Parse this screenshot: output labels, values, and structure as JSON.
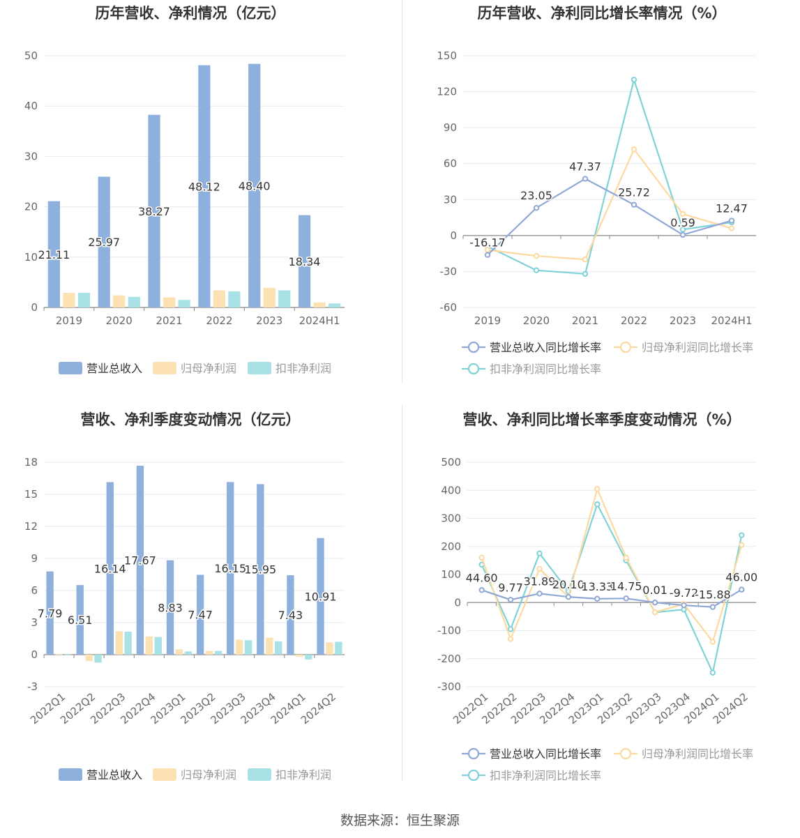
{
  "footer": {
    "source": "数据来源：恒生聚源"
  },
  "colors": {
    "revenue": "#8eb0dc",
    "netProfit": "#fce2b3",
    "deducted": "#a8e2e6",
    "revenueLine": "#8fa8d8",
    "netProfitLine": "#fdd9a0",
    "deductedLine": "#7fd3d6"
  },
  "chart_data": [
    {
      "id": "annual-bar",
      "type": "bar",
      "title": "历年营收、净利情况（亿元）",
      "categories": [
        "2019",
        "2020",
        "2021",
        "2022",
        "2023",
        "2024H1"
      ],
      "ylim": [
        0,
        50
      ],
      "yticks": [
        0,
        10,
        20,
        30,
        40,
        50
      ],
      "series": [
        {
          "name": "营业总收入",
          "values": [
            21.11,
            25.97,
            38.27,
            48.12,
            48.4,
            18.34
          ],
          "labels": [
            "21.11",
            "25.97",
            "38.27",
            "48.12",
            "48.40",
            "18.34"
          ]
        },
        {
          "name": "归母净利润",
          "values": [
            2.9,
            2.4,
            2.0,
            3.4,
            3.9,
            1.0
          ]
        },
        {
          "name": "扣非净利润",
          "values": [
            2.9,
            2.1,
            1.5,
            3.2,
            3.4,
            0.8
          ]
        }
      ]
    },
    {
      "id": "annual-line",
      "type": "line",
      "title": "历年营收、净利同比增长率情况（%）",
      "categories": [
        "2019",
        "2020",
        "2021",
        "2022",
        "2023",
        "2024H1"
      ],
      "ylim": [
        -60,
        150
      ],
      "yticks": [
        -60,
        -30,
        0,
        30,
        60,
        90,
        120,
        150
      ],
      "series": [
        {
          "name": "营业总收入同比增长率",
          "values": [
            -16.17,
            23.05,
            47.37,
            25.72,
            0.59,
            12.47
          ],
          "labels": [
            "-16.17",
            "23.05",
            "47.37",
            "25.72",
            "0.59",
            "12.47"
          ]
        },
        {
          "name": "归母净利润同比增长率",
          "values": [
            -12,
            -17,
            -20,
            72,
            18,
            6
          ]
        },
        {
          "name": "扣非净利润同比增长率",
          "values": [
            -9,
            -29,
            -32,
            130,
            5,
            11
          ]
        }
      ]
    },
    {
      "id": "quarterly-bar",
      "type": "bar",
      "title": "营收、净利季度变动情况（亿元）",
      "categories": [
        "2022Q1",
        "2022Q2",
        "2022Q3",
        "2022Q4",
        "2023Q1",
        "2023Q2",
        "2023Q3",
        "2023Q4",
        "2024Q1",
        "2024Q2"
      ],
      "ylim": [
        -3,
        18
      ],
      "yticks": [
        -3,
        0,
        3,
        6,
        9,
        12,
        15,
        18
      ],
      "series": [
        {
          "name": "营业总收入",
          "values": [
            7.79,
            6.51,
            16.14,
            17.67,
            8.83,
            7.47,
            16.15,
            15.95,
            7.43,
            10.91
          ],
          "labels": [
            "7.79",
            "6.51",
            "16.14",
            "17.67",
            "8.83",
            "7.47",
            "16.15",
            "15.95",
            "7.43",
            "10.91"
          ]
        },
        {
          "name": "归母净利润",
          "values": [
            0.05,
            -0.6,
            2.2,
            1.7,
            0.5,
            0.35,
            1.4,
            1.6,
            -0.2,
            1.15
          ]
        },
        {
          "name": "扣非净利润",
          "values": [
            0.05,
            -0.75,
            2.15,
            1.65,
            0.3,
            0.35,
            1.35,
            1.25,
            -0.45,
            1.2
          ]
        }
      ]
    },
    {
      "id": "quarterly-line",
      "type": "line",
      "title": "营收、净利同比增长率季度变动情况（%）",
      "categories": [
        "2022Q1",
        "2022Q2",
        "2022Q3",
        "2022Q4",
        "2023Q1",
        "2023Q2",
        "2023Q3",
        "2023Q4",
        "2024Q1",
        "2024Q2"
      ],
      "ylim": [
        -300,
        500
      ],
      "yticks": [
        -300,
        -200,
        -100,
        0,
        100,
        200,
        300,
        400,
        500
      ],
      "series": [
        {
          "name": "营业总收入同比增长率",
          "values": [
            44.6,
            9.77,
            31.89,
            20.1,
            13.33,
            14.75,
            0.01,
            -9.72,
            -15.88,
            46.0
          ],
          "labels": [
            "44.60",
            "9.77",
            "31.89",
            "20.10",
            "13.33",
            "14.75",
            "0.01",
            "-9.72",
            "-15.88",
            "46.00"
          ]
        },
        {
          "name": "归母净利润同比增长率",
          "values": [
            160,
            -130,
            120,
            20,
            405,
            160,
            -35,
            -5,
            -140,
            205
          ]
        },
        {
          "name": "扣非净利润同比增长率",
          "values": [
            135,
            -95,
            175,
            40,
            350,
            150,
            -35,
            -25,
            -250,
            240
          ]
        }
      ]
    }
  ]
}
